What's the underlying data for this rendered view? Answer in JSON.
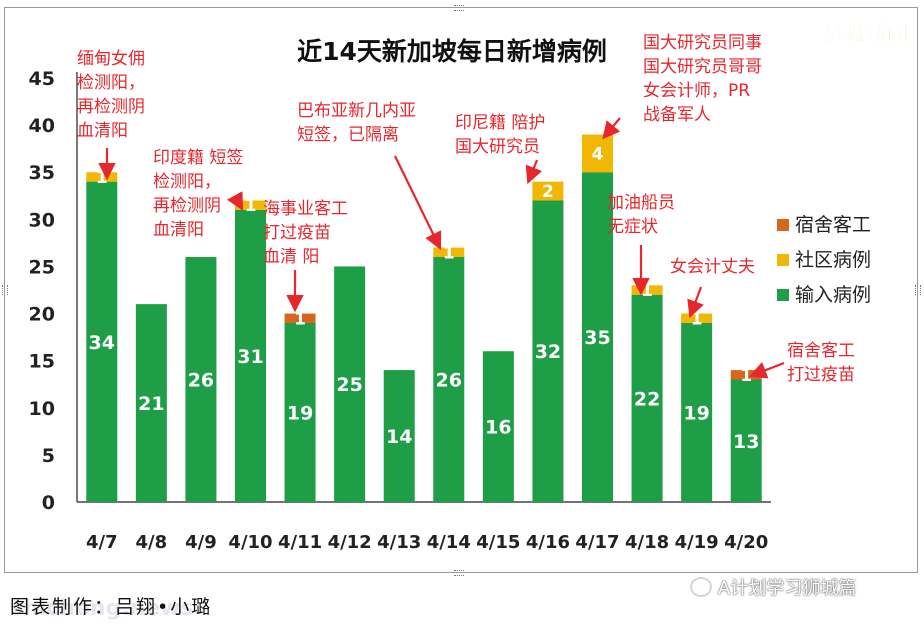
{
  "chart_data": {
    "type": "bar",
    "stacked": true,
    "title": "近14天新加坡每日新增病例",
    "xlabel": "",
    "ylabel": "",
    "ylim": [
      0,
      45
    ],
    "yticks": [
      0,
      5,
      10,
      15,
      20,
      25,
      30,
      35,
      40,
      45
    ],
    "grid": false,
    "legend_position": "right",
    "categories": [
      "4/7",
      "4/8",
      "4/9",
      "4/10",
      "4/11",
      "4/12",
      "4/13",
      "4/14",
      "4/15",
      "4/16",
      "4/17",
      "4/18",
      "4/19",
      "4/20"
    ],
    "series": [
      {
        "name": "输入病例",
        "color": "#1e9e46",
        "values": [
          34,
          21,
          26,
          31,
          19,
          25,
          14,
          26,
          16,
          32,
          35,
          22,
          19,
          13
        ]
      },
      {
        "name": "社区病例",
        "color": "#f2b705",
        "values": [
          1,
          0,
          0,
          1,
          0,
          0,
          0,
          1,
          0,
          2,
          4,
          1,
          1,
          0
        ]
      },
      {
        "name": "宿舍客工",
        "color": "#d8661c",
        "values": [
          0,
          0,
          0,
          0,
          1,
          0,
          0,
          0,
          0,
          0,
          0,
          0,
          0,
          1
        ]
      }
    ],
    "legend": [
      "宿舍客工",
      "社区病例",
      "输入病例"
    ],
    "annotations": [
      {
        "category": "4/7",
        "lines": [
          "缅甸女佣",
          "检测阳，",
          "再检测阴",
          "血清阳"
        ]
      },
      {
        "category": "4/10",
        "lines": [
          "印度籍 短签",
          "检测阳，",
          "再检测阴",
          "血清阳"
        ]
      },
      {
        "category": "4/11",
        "lines": [
          "海事业客工",
          "打过疫苗",
          "血清 阳"
        ]
      },
      {
        "category": "4/14",
        "lines": [
          "巴布亚新几内亚",
          "短签，已隔离"
        ]
      },
      {
        "category": "4/16",
        "lines": [
          "印尼籍 陪护",
          "国大研究员"
        ]
      },
      {
        "category": "4/17",
        "lines": [
          "国大研究员同事",
          "国大研究员哥哥",
          "女会计师，PR",
          "战备军人"
        ]
      },
      {
        "category": "4/18",
        "lines": [
          "加油船员",
          "无症状"
        ]
      },
      {
        "category": "4/19",
        "lines": [
          "女会计丈夫"
        ]
      },
      {
        "category": "4/20",
        "lines": [
          "宿舍客工",
          "打过疫苗"
        ]
      }
    ],
    "colors": {
      "annotation": "#e8262d",
      "arrow": "#e8262d",
      "axis": "#222222",
      "value_label": "#ffffff"
    }
  },
  "watermark_top": "狮城新闻",
  "caption": "图表制作：吕翔•小璐",
  "watermark_bottom": "shicheng.news",
  "brand": "A计划学习狮城篇"
}
